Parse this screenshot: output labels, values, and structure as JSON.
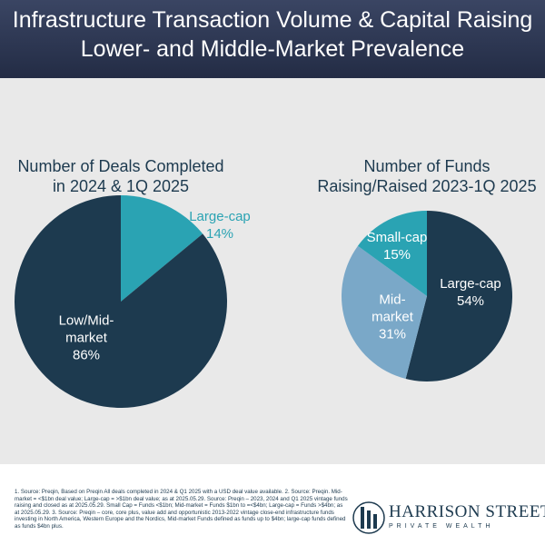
{
  "header": {
    "title_lines": [
      "Infrastructure Transaction Volume & Capital Raising",
      "Lower- and Middle-Market Prevalence"
    ]
  },
  "chart_data": [
    {
      "type": "pie",
      "title": [
        "Number of Deals Completed",
        "in 2024 & 1Q 2025"
      ],
      "categories": [
        "Large-cap",
        "Low/Mid-market"
      ],
      "values": [
        14,
        86
      ],
      "value_labels": [
        "14%",
        "86%"
      ],
      "colors": [
        "#2aa3b3",
        "#1d3a4f"
      ]
    },
    {
      "type": "pie",
      "title": [
        "Number of Funds",
        "Raising/Raised 2023-1Q 2025"
      ],
      "categories": [
        "Large-cap",
        "Mid-market",
        "Small-cap"
      ],
      "values": [
        54,
        31,
        15
      ],
      "value_labels": [
        "54%",
        "31%",
        "15%"
      ],
      "colors": [
        "#1d3a4f",
        "#7aa8c8",
        "#2aa3b3"
      ]
    }
  ],
  "footnote": "1. Source: Preqin, Based on Preqin All deals completed in 2024 & Q1 2025 with a USD deal value available. 2. Source: Preqin. Mid-market = <$1bn deal value; Large-cap = >$1bn deal value; as at 2025.05.29. Source: Preqin – 2023, 2024 and Q1 2025 vintage funds raising and closed as at 2025.05.29. Small Cap = Funds <$1bn; Mid-market = Funds $1bn to =<$4bn; Large-cap = Funds >$4bn; as at 2025.05.29. 3. Source: Preqin – core, core plus, value add and opportunistic 2013-2022 vintage close-end infrastructure funds investing in North America, Western Europe and the Nordics, Mid-market Funds defined as funds up to $4bn; large-cap funds defined as funds $4bn plus.",
  "logo": {
    "name": "HARRISON STREET",
    "tagline": "PRIVATE WEALTH"
  }
}
